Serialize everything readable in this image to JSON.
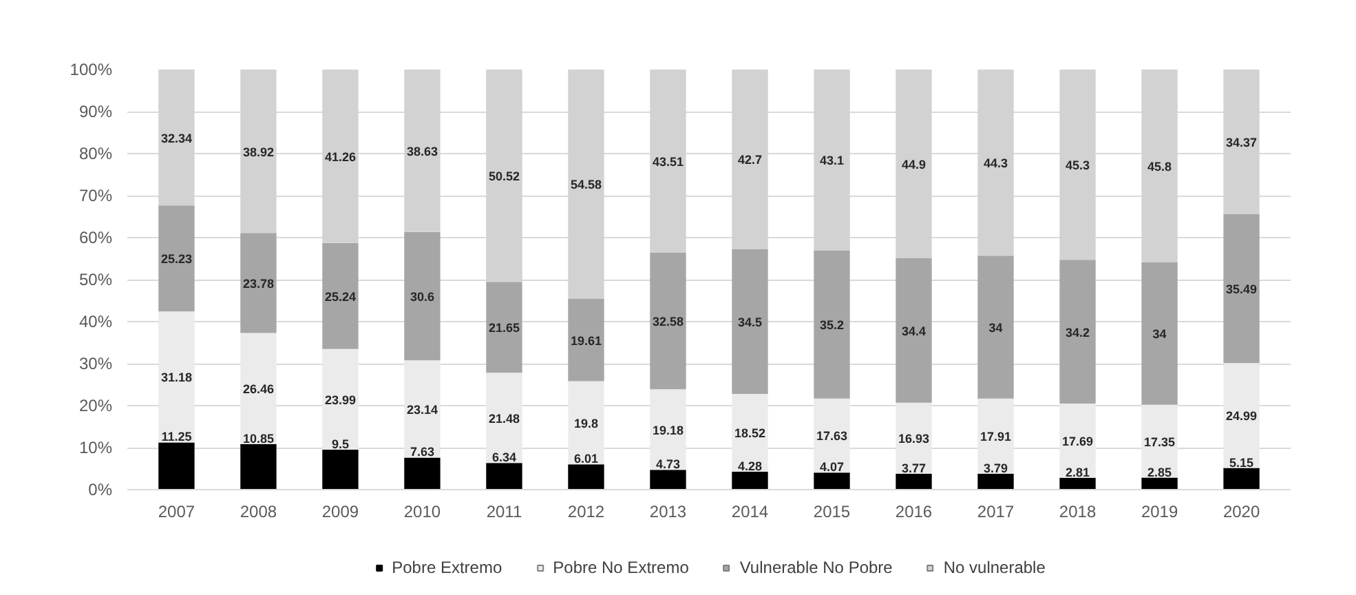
{
  "chart_data": {
    "type": "bar",
    "stacked": true,
    "categories": [
      "2007",
      "2008",
      "2009",
      "2010",
      "2011",
      "2012",
      "2013",
      "2014",
      "2015",
      "2016",
      "2017",
      "2018",
      "2019",
      "2020"
    ],
    "series": [
      {
        "name": "Pobre Extremo",
        "color": "#000000",
        "values": [
          11.25,
          10.85,
          9.5,
          7.63,
          6.34,
          6.01,
          4.73,
          4.28,
          4.07,
          3.77,
          3.79,
          2.81,
          2.85,
          5.15
        ]
      },
      {
        "name": "Pobre No Extremo",
        "color": "#ebebeb",
        "values": [
          31.18,
          26.46,
          23.99,
          23.14,
          21.48,
          19.8,
          19.18,
          18.52,
          17.63,
          16.93,
          17.91,
          17.69,
          17.35,
          24.99
        ]
      },
      {
        "name": "Vulnerable No Pobre",
        "color": "#a6a6a6",
        "values": [
          25.23,
          23.78,
          25.24,
          30.6,
          21.65,
          19.61,
          32.58,
          34.5,
          35.2,
          34.4,
          34,
          34.2,
          34,
          35.49
        ]
      },
      {
        "name": "No vulnerable",
        "color": "#d2d2d2",
        "values": [
          32.34,
          38.92,
          41.26,
          38.63,
          50.52,
          54.58,
          43.51,
          42.7,
          43.1,
          44.9,
          44.3,
          45.3,
          45.8,
          34.37
        ]
      }
    ],
    "ylim": [
      0,
      100
    ],
    "yticks": [
      {
        "value": 0,
        "label": "0%"
      },
      {
        "value": 10,
        "label": "10%"
      },
      {
        "value": 20,
        "label": "20%"
      },
      {
        "value": 30,
        "label": "30%"
      },
      {
        "value": 40,
        "label": "40%"
      },
      {
        "value": 50,
        "label": "50%"
      },
      {
        "value": 60,
        "label": "60%"
      },
      {
        "value": 70,
        "label": "70%"
      },
      {
        "value": 80,
        "label": "80%"
      },
      {
        "value": 90,
        "label": "90%"
      },
      {
        "value": 100,
        "label": "100%"
      }
    ],
    "grid": "y",
    "legend": "bottom",
    "data_labels": true
  }
}
